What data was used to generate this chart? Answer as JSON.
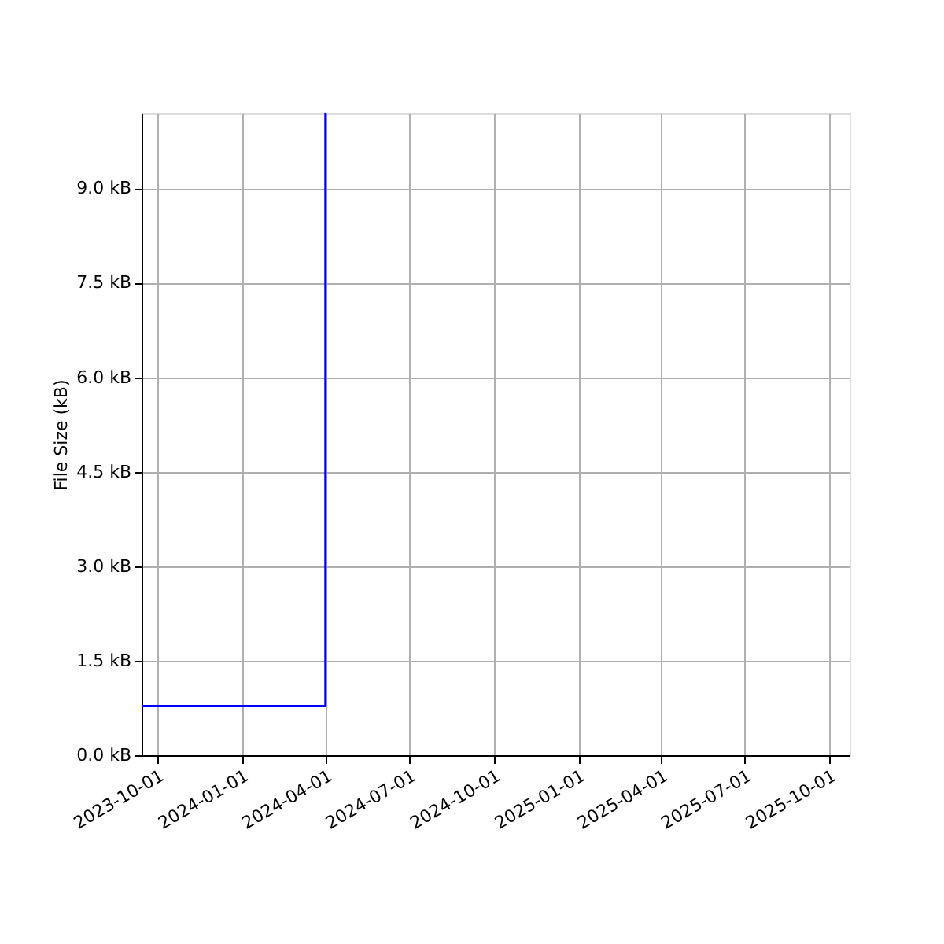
{
  "chart_data": {
    "type": "step",
    "ylabel": "File Size (kB)",
    "x": [
      "2023-09-14",
      "2024-04-01"
    ],
    "series": [
      {
        "color": "#0000ff",
        "values": [
          0.78,
          10.19
        ]
      }
    ],
    "xlim": [
      "2023-09-14",
      "2025-10-23"
    ],
    "xticks": [
      "2023-10-01",
      "2024-01-01",
      "2024-04-01",
      "2024-07-01",
      "2024-10-01",
      "2025-01-01",
      "2025-04-01",
      "2025-07-01",
      "2025-10-01"
    ],
    "ylim": [
      0,
      10.19
    ],
    "yticks": [
      {
        "value": 0,
        "label": "0.0 kB"
      },
      {
        "value": 1.5,
        "label": "1.5 kB"
      },
      {
        "value": 3,
        "label": "3.0 kB"
      },
      {
        "value": 4.5,
        "label": "4.5 kB"
      },
      {
        "value": 6,
        "label": "6.0 kB"
      },
      {
        "value": 7.5,
        "label": "7.5 kB"
      },
      {
        "value": 9,
        "label": "9.0 kB"
      }
    ],
    "grid": true
  }
}
